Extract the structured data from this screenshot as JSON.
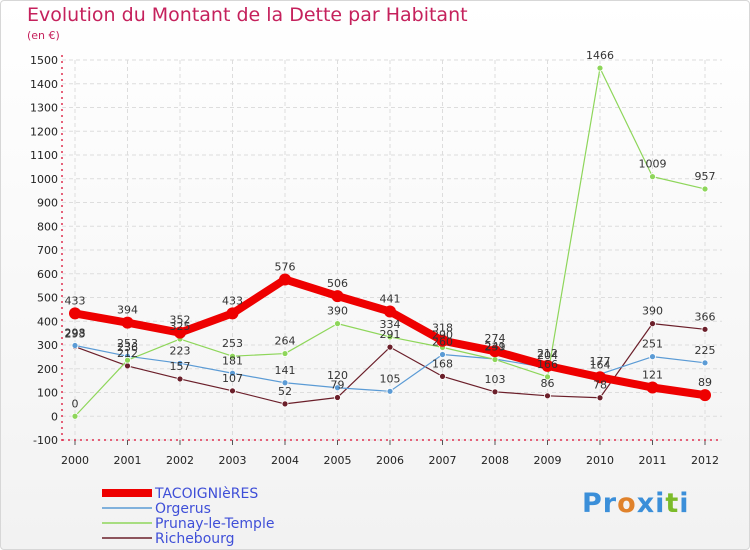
{
  "title": "Evolution du Montant de la Dette par Habitant",
  "subtitle": "(en €)",
  "logo": {
    "text": "Proxiti",
    "letters": [
      {
        "ch": "P",
        "color": "#3b8fd9"
      },
      {
        "ch": "r",
        "color": "#3b8fd9"
      },
      {
        "ch": "o",
        "color": "#e0822b"
      },
      {
        "ch": "x",
        "color": "#3b8fd9"
      },
      {
        "ch": "i",
        "color": "#3b8fd9"
      },
      {
        "ch": "t",
        "color": "#7cbb2a"
      },
      {
        "ch": "i",
        "color": "#3b8fd9"
      }
    ]
  },
  "chart_data": {
    "type": "line",
    "x": [
      "2000",
      "2001",
      "2002",
      "2003",
      "2004",
      "2005",
      "2006",
      "2007",
      "2008",
      "2009",
      "2010",
      "2011",
      "2012"
    ],
    "ylim": [
      -100,
      1500
    ],
    "yticks": [
      -100,
      0,
      100,
      200,
      300,
      400,
      500,
      600,
      700,
      800,
      900,
      1000,
      1100,
      1200,
      1300,
      1400,
      1500
    ],
    "grid": true,
    "legend": "bottom-left",
    "series": [
      {
        "name": "Richebourg",
        "color": "#6b1f2a",
        "width": 1.2,
        "values": [
          293,
          212,
          157,
          107,
          52,
          79,
          291,
          168,
          103,
          86,
          78,
          390,
          366
        ]
      },
      {
        "name": "Orgerus",
        "color": "#5b9bd5",
        "width": 1.2,
        "values": [
          298,
          253,
          223,
          181,
          141,
          120,
          105,
          260,
          241,
          204,
          177,
          251,
          225
        ]
      },
      {
        "name": "Prunay-le-Temple",
        "color": "#8ed65a",
        "width": 1.2,
        "values": [
          0,
          236,
          325,
          253,
          264,
          390,
          334,
          290,
          239,
          166,
          1466,
          1009,
          957
        ]
      },
      {
        "name": "TACOIGNIèRES",
        "color": "#ee0000",
        "width": 8,
        "values": [
          433,
          394,
          352,
          433,
          576,
          506,
          441,
          318,
          274,
          212,
          164,
          121,
          89
        ]
      }
    ],
    "data_labels": [
      {
        "text": "0",
        "x": "2000",
        "y": 0
      },
      {
        "text": "298",
        "x": "2000",
        "y": 298
      },
      {
        "text": "293",
        "x": "2000",
        "y": 293
      },
      {
        "text": "433",
        "x": "2000",
        "y": 433
      },
      {
        "text": "394",
        "x": "2001",
        "y": 394
      },
      {
        "text": "253",
        "x": "2001",
        "y": 253
      },
      {
        "text": "236",
        "x": "2001",
        "y": 236
      },
      {
        "text": "212",
        "x": "2001",
        "y": 212
      },
      {
        "text": "352",
        "x": "2002",
        "y": 352
      },
      {
        "text": "325",
        "x": "2002",
        "y": 325
      },
      {
        "text": "223",
        "x": "2002",
        "y": 223
      },
      {
        "text": "157",
        "x": "2002",
        "y": 157
      },
      {
        "text": "433",
        "x": "2003",
        "y": 433
      },
      {
        "text": "253",
        "x": "2003",
        "y": 253
      },
      {
        "text": "181",
        "x": "2003",
        "y": 181
      },
      {
        "text": "107",
        "x": "2003",
        "y": 107
      },
      {
        "text": "576",
        "x": "2004",
        "y": 576
      },
      {
        "text": "264",
        "x": "2004",
        "y": 264
      },
      {
        "text": "141",
        "x": "2004",
        "y": 141
      },
      {
        "text": "52",
        "x": "2004",
        "y": 52
      },
      {
        "text": "506",
        "x": "2005",
        "y": 506
      },
      {
        "text": "390",
        "x": "2005",
        "y": 390
      },
      {
        "text": "120",
        "x": "2005",
        "y": 120
      },
      {
        "text": "79",
        "x": "2005",
        "y": 79
      },
      {
        "text": "441",
        "x": "2006",
        "y": 441
      },
      {
        "text": "334",
        "x": "2006",
        "y": 334
      },
      {
        "text": "291",
        "x": "2006",
        "y": 291
      },
      {
        "text": "105",
        "x": "2006",
        "y": 105
      },
      {
        "text": "318",
        "x": "2007",
        "y": 318
      },
      {
        "text": "290",
        "x": "2007",
        "y": 290
      },
      {
        "text": "260",
        "x": "2007",
        "y": 260
      },
      {
        "text": "168",
        "x": "2007",
        "y": 168
      },
      {
        "text": "274",
        "x": "2008",
        "y": 274
      },
      {
        "text": "241",
        "x": "2008",
        "y": 241
      },
      {
        "text": "239",
        "x": "2008",
        "y": 239
      },
      {
        "text": "103",
        "x": "2008",
        "y": 103
      },
      {
        "text": "212",
        "x": "2009",
        "y": 212
      },
      {
        "text": "204",
        "x": "2009",
        "y": 204
      },
      {
        "text": "166",
        "x": "2009",
        "y": 166
      },
      {
        "text": "86",
        "x": "2009",
        "y": 86
      },
      {
        "text": "1466",
        "x": "2010",
        "y": 1466
      },
      {
        "text": "177",
        "x": "2010",
        "y": 177
      },
      {
        "text": "164",
        "x": "2010",
        "y": 164
      },
      {
        "text": "78",
        "x": "2010",
        "y": 78
      },
      {
        "text": "1009",
        "x": "2011",
        "y": 1009
      },
      {
        "text": "390",
        "x": "2011",
        "y": 390
      },
      {
        "text": "251",
        "x": "2011",
        "y": 251
      },
      {
        "text": "121",
        "x": "2011",
        "y": 121
      },
      {
        "text": "957",
        "x": "2012",
        "y": 957
      },
      {
        "text": "366",
        "x": "2012",
        "y": 366
      },
      {
        "text": "225",
        "x": "2012",
        "y": 225
      },
      {
        "text": "89",
        "x": "2012",
        "y": 89
      }
    ],
    "legend_items": [
      {
        "name": "TACOIGNIèRES",
        "color": "#ee0000",
        "thick": true
      },
      {
        "name": "Orgerus",
        "color": "#5b9bd5",
        "thick": false
      },
      {
        "name": "Prunay-le-Temple",
        "color": "#8ed65a",
        "thick": false
      },
      {
        "name": "Richebourg",
        "color": "#6b1f2a",
        "thick": false
      }
    ]
  }
}
